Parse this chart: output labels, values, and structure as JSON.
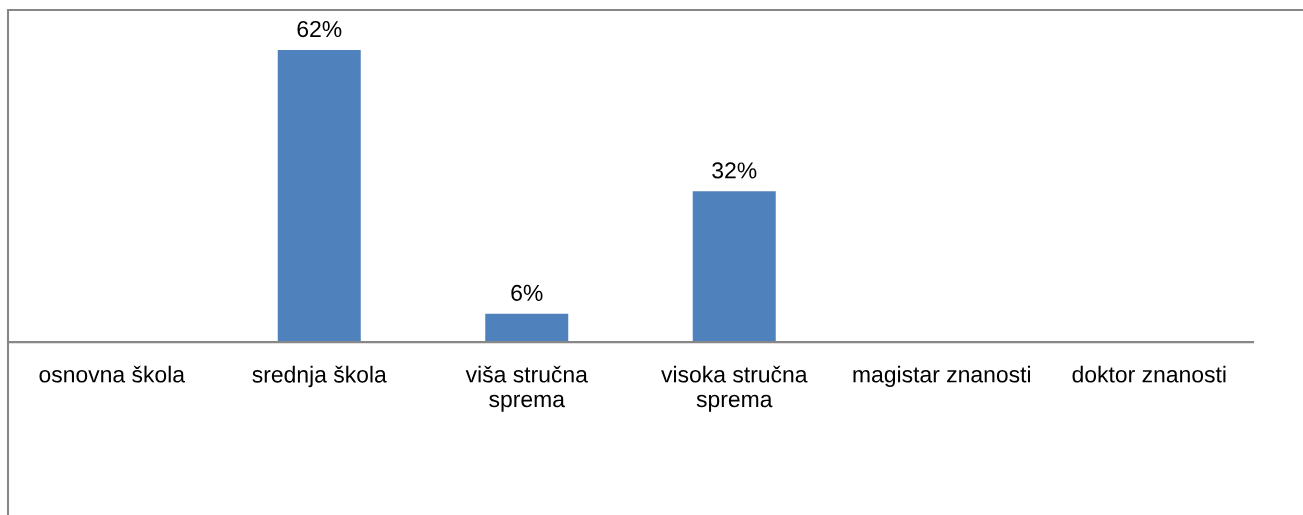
{
  "chart_data": {
    "type": "bar",
    "categories": [
      "osnovna škola",
      "srednja škola",
      "viša stručna sprema",
      "visoka stručna sprema",
      "magistar znanosti",
      "doktor znanosti"
    ],
    "values": [
      0,
      62,
      6,
      32,
      0,
      0
    ],
    "color": "#4f81bd",
    "value_labels": [
      null,
      "62%",
      "6%",
      "32%",
      null,
      null
    ],
    "ylim": [
      -36.7,
      70.5
    ],
    "tick_labels": "x"
  }
}
